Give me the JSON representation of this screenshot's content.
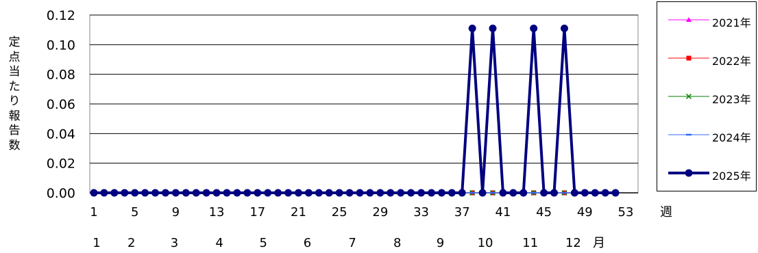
{
  "chart_data": {
    "type": "line",
    "title": "",
    "ylabel": "定点当たり報告数",
    "xlabel_week": "週",
    "xlabel_month": "月",
    "ylim": [
      0,
      0.12
    ],
    "yticks": [
      "0.00",
      "0.02",
      "0.04",
      "0.06",
      "0.08",
      "0.10",
      "0.12"
    ],
    "xlim": [
      1,
      53
    ],
    "xticks": [
      "1",
      "5",
      "9",
      "13",
      "17",
      "21",
      "25",
      "29",
      "33",
      "37",
      "41",
      "45",
      "49",
      "53"
    ],
    "months": [
      {
        "label": "1",
        "week": 1
      },
      {
        "label": "2",
        "week": 4.4
      },
      {
        "label": "3",
        "week": 8.6
      },
      {
        "label": "4",
        "week": 13
      },
      {
        "label": "5",
        "week": 17.3
      },
      {
        "label": "6",
        "week": 21.6
      },
      {
        "label": "7",
        "week": 26
      },
      {
        "label": "8",
        "week": 30.4
      },
      {
        "label": "9",
        "week": 34.6
      },
      {
        "label": "10",
        "week": 39
      },
      {
        "label": "11",
        "week": 43.4
      },
      {
        "label": "12",
        "week": 47.6
      }
    ],
    "grid": "horizontal",
    "legend_position": "right",
    "series": [
      {
        "name": "2021年",
        "color": "#ff00ff",
        "marker": "triangle",
        "line_width": 1,
        "x": [
          1,
          2,
          3,
          4,
          5,
          6,
          7,
          8,
          9,
          10,
          11,
          12,
          13,
          14,
          15,
          16,
          17,
          18,
          19,
          20,
          21,
          22,
          23,
          24,
          25,
          26,
          27,
          28,
          29,
          30,
          31,
          32,
          33,
          34,
          35,
          36,
          37,
          38,
          39,
          40,
          41,
          42,
          43,
          44,
          45,
          46,
          47,
          48,
          49,
          50,
          51,
          52
        ],
        "values": [
          0,
          0,
          0,
          0,
          0,
          0,
          0,
          0,
          0,
          0,
          0,
          0,
          0,
          0,
          0,
          0,
          0,
          0,
          0,
          0,
          0,
          0,
          0,
          0,
          0,
          0,
          0,
          0,
          0,
          0,
          0,
          0,
          0,
          0,
          0,
          0,
          0,
          0,
          0,
          0,
          0,
          0,
          0,
          0,
          0,
          0,
          0,
          0,
          0,
          0,
          0,
          0
        ]
      },
      {
        "name": "2022年",
        "color": "#ff0000",
        "marker": "square",
        "line_width": 1,
        "x": [
          1,
          2,
          3,
          4,
          5,
          6,
          7,
          8,
          9,
          10,
          11,
          12,
          13,
          14,
          15,
          16,
          17,
          18,
          19,
          20,
          21,
          22,
          23,
          24,
          25,
          26,
          27,
          28,
          29,
          30,
          31,
          32,
          33,
          34,
          35,
          36,
          37,
          38,
          39,
          40,
          41,
          42,
          43,
          44,
          45,
          46,
          47,
          48,
          49,
          50,
          51,
          52
        ],
        "values": [
          0,
          0,
          0,
          0,
          0,
          0,
          0,
          0,
          0,
          0,
          0,
          0,
          0,
          0,
          0,
          0,
          0,
          0,
          0,
          0,
          0,
          0,
          0,
          0,
          0,
          0,
          0,
          0,
          0,
          0,
          0,
          0,
          0,
          0,
          0,
          0,
          0,
          0,
          0,
          0,
          0,
          0,
          0,
          0,
          0,
          0,
          0,
          0,
          0,
          0,
          0,
          0
        ]
      },
      {
        "name": "2023年",
        "color": "#008000",
        "marker": "x",
        "line_width": 1,
        "x": [
          1,
          2,
          3,
          4,
          5,
          6,
          7,
          8,
          9,
          10,
          11,
          12,
          13,
          14,
          15,
          16,
          17,
          18,
          19,
          20,
          21,
          22,
          23,
          24,
          25,
          26,
          27,
          28,
          29,
          30,
          31,
          32,
          33,
          34,
          35,
          36,
          37,
          38,
          39,
          40,
          41,
          42,
          43,
          44,
          45,
          46,
          47,
          48,
          49,
          50,
          51,
          52
        ],
        "values": [
          0,
          0,
          0,
          0,
          0,
          0,
          0,
          0,
          0,
          0,
          0,
          0,
          0,
          0,
          0,
          0,
          0,
          0,
          0,
          0,
          0,
          0,
          0,
          0,
          0,
          0,
          0,
          0,
          0,
          0,
          0,
          0,
          0,
          0,
          0,
          0,
          0,
          0,
          0,
          0,
          0,
          0,
          0,
          0,
          0,
          0,
          0,
          0,
          0,
          0,
          0,
          0
        ]
      },
      {
        "name": "2024年",
        "color": "#3366ff",
        "marker": "dash",
        "line_width": 1,
        "x": [
          1,
          2,
          3,
          4,
          5,
          6,
          7,
          8,
          9,
          10,
          11,
          12,
          13,
          14,
          15,
          16,
          17,
          18,
          19,
          20,
          21,
          22,
          23,
          24,
          25,
          26,
          27,
          28,
          29,
          30,
          31,
          32,
          33,
          34,
          35,
          36,
          37,
          38,
          39,
          40,
          41,
          42,
          43,
          44,
          45,
          46,
          47,
          48,
          49,
          50,
          51,
          52
        ],
        "values": [
          0,
          0,
          0,
          0,
          0,
          0,
          0,
          0,
          0,
          0,
          0,
          0,
          0,
          0,
          0,
          0,
          0,
          0,
          0,
          0,
          0,
          0,
          0,
          0,
          0,
          0,
          0,
          0,
          0,
          0,
          0,
          0,
          0,
          0,
          0,
          0,
          0,
          0,
          0,
          0,
          0,
          0,
          0,
          0,
          0,
          0,
          0,
          0,
          0,
          0,
          0,
          0
        ]
      },
      {
        "name": "2025年",
        "color": "#000080",
        "marker": "circle",
        "line_width": 4,
        "x": [
          1,
          2,
          3,
          4,
          5,
          6,
          7,
          8,
          9,
          10,
          11,
          12,
          13,
          14,
          15,
          16,
          17,
          18,
          19,
          20,
          21,
          22,
          23,
          24,
          25,
          26,
          27,
          28,
          29,
          30,
          31,
          32,
          33,
          34,
          35,
          36,
          37,
          38,
          39,
          40,
          41,
          42,
          43,
          44,
          45,
          46,
          47,
          48,
          49,
          50,
          51,
          52
        ],
        "values": [
          0,
          0,
          0,
          0,
          0,
          0,
          0,
          0,
          0,
          0,
          0,
          0,
          0,
          0,
          0,
          0,
          0,
          0,
          0,
          0,
          0,
          0,
          0,
          0,
          0,
          0,
          0,
          0,
          0,
          0,
          0,
          0,
          0,
          0,
          0,
          0,
          0,
          0.111,
          0,
          0.111,
          0,
          0,
          0,
          0.111,
          0,
          0,
          0.111,
          0,
          0,
          0,
          0,
          0
        ]
      }
    ]
  }
}
